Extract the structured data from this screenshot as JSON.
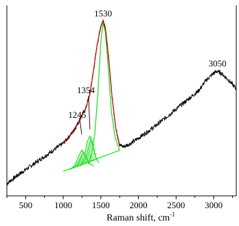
{
  "chart_data": {
    "type": "line",
    "title": "",
    "xlabel": "Raman shift, cm",
    "xlabel_superscript": "-1",
    "ylabel": "",
    "xlim": [
      250,
      3300
    ],
    "ylim": [
      0,
      1.0
    ],
    "x_ticks": [
      500,
      1000,
      1500,
      2000,
      2500,
      3000
    ],
    "x_tick_labels": [
      "500",
      "1000",
      "1500",
      "2000",
      "2500",
      "3000"
    ],
    "grid": false,
    "legend": "none",
    "annotations": [
      {
        "text": "1530",
        "x": 1530
      },
      {
        "text": "1354",
        "x": 1354
      },
      {
        "text": "1245",
        "x": 1245
      },
      {
        "text": "3050",
        "x": 3050
      }
    ],
    "colors": {
      "spectrum": "#000000",
      "fit": "#cc0000",
      "components": "#22dd22"
    },
    "series": [
      {
        "role": "spectrum",
        "x": [
          250,
          400,
          600,
          800,
          900,
          1000,
          1100,
          1150,
          1200,
          1250,
          1300,
          1350,
          1400,
          1450,
          1500,
          1530,
          1560,
          1600,
          1650,
          1700,
          1750,
          1800,
          1900,
          2000,
          2200,
          2400,
          2600,
          2800,
          2900,
          3000,
          3050,
          3100,
          3200,
          3300
        ],
        "y": [
          0.07,
          0.12,
          0.18,
          0.24,
          0.27,
          0.3,
          0.35,
          0.38,
          0.42,
          0.46,
          0.5,
          0.58,
          0.71,
          0.86,
          0.97,
          1.0,
          0.96,
          0.8,
          0.56,
          0.38,
          0.29,
          0.28,
          0.3,
          0.33,
          0.39,
          0.46,
          0.53,
          0.6,
          0.66,
          0.7,
          0.71,
          0.7,
          0.66,
          0.61
        ]
      },
      {
        "role": "fit",
        "x": [
          1000,
          1100,
          1200,
          1300,
          1354,
          1400,
          1450,
          1500,
          1530,
          1560,
          1600,
          1650,
          1700,
          1750
        ],
        "y": [
          0.3,
          0.35,
          0.42,
          0.5,
          0.58,
          0.71,
          0.86,
          0.97,
          1.0,
          0.96,
          0.8,
          0.56,
          0.38,
          0.29
        ]
      },
      {
        "role": "baseline",
        "x": [
          1000,
          1750
        ],
        "y": [
          0.14,
          0.26
        ]
      },
      {
        "role": "component-1530",
        "x": [
          1330,
          1380,
          1420,
          1460,
          1500,
          1530,
          1560,
          1600,
          1640,
          1690,
          1750
        ],
        "y": [
          0.18,
          0.24,
          0.36,
          0.58,
          0.88,
          0.99,
          0.93,
          0.72,
          0.48,
          0.33,
          0.26
        ]
      },
      {
        "role": "component-1354",
        "x": [
          1230,
          1280,
          1320,
          1354,
          1390,
          1430,
          1470
        ],
        "y": [
          0.17,
          0.22,
          0.31,
          0.34,
          0.29,
          0.22,
          0.19
        ]
      },
      {
        "role": "component-1245",
        "x": [
          1100,
          1160,
          1210,
          1245,
          1290,
          1340,
          1400
        ],
        "y": [
          0.15,
          0.18,
          0.23,
          0.26,
          0.23,
          0.19,
          0.17
        ]
      }
    ]
  }
}
